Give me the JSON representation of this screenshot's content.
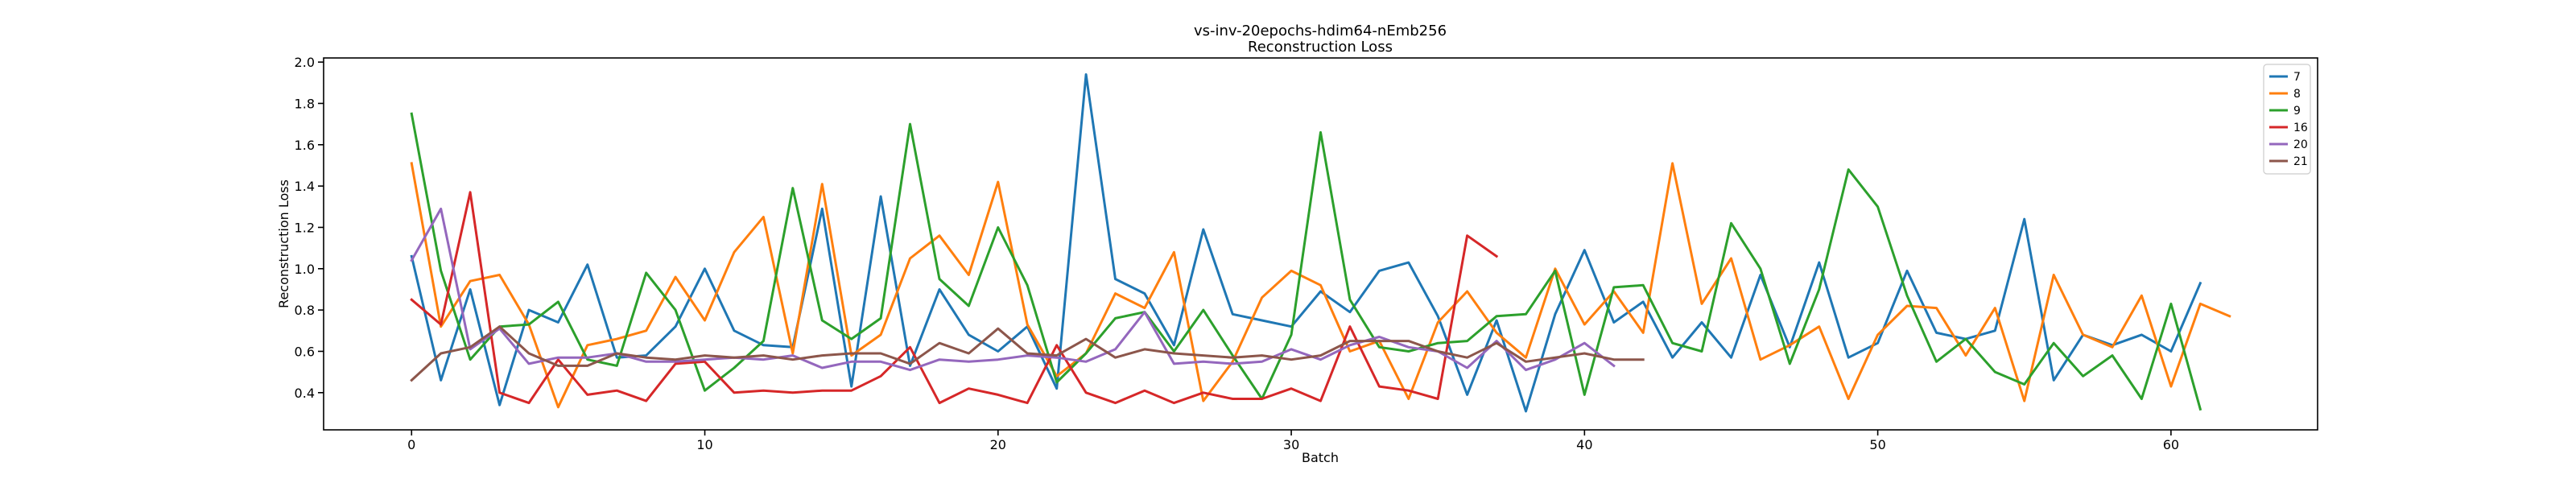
{
  "chart_data": {
    "type": "line",
    "title": "vs-inv-20epochs-hdim64-nEmb256",
    "subtitle": "Reconstruction Loss",
    "xlabel": "Batch",
    "ylabel": "Reconstruction Loss",
    "xlim": [
      -3,
      65
    ],
    "ylim": [
      0.22,
      2.02
    ],
    "xticks": [
      0,
      10,
      20,
      30,
      40,
      50,
      60
    ],
    "yticks": [
      0.4,
      0.6,
      0.8,
      1.0,
      1.2,
      1.4,
      1.6,
      1.8,
      2.0
    ],
    "ytick_labels": [
      "0.4",
      "0.6",
      "0.8",
      "1.0",
      "1.2",
      "1.4",
      "1.6",
      "1.8",
      "2.0"
    ],
    "grid": false,
    "legend_position": "top-right",
    "series": [
      {
        "name": "7",
        "color": "#1f77b4",
        "values": [
          1.06,
          0.46,
          0.9,
          0.34,
          0.8,
          0.74,
          1.02,
          0.57,
          0.58,
          0.72,
          1.0,
          0.7,
          0.63,
          0.62,
          1.29,
          0.43,
          1.35,
          0.53,
          0.9,
          0.68,
          0.6,
          0.72,
          0.42,
          1.94,
          0.95,
          0.88,
          0.63,
          1.19,
          0.78,
          0.75,
          0.72,
          0.89,
          0.79,
          0.99,
          1.03,
          0.77,
          0.39,
          0.75,
          0.31,
          0.78,
          1.09,
          0.74,
          0.84,
          0.57,
          0.74,
          0.57,
          0.97,
          0.62,
          1.03,
          0.57,
          0.64,
          0.99,
          0.69,
          0.66,
          0.7,
          1.24,
          0.46,
          0.68,
          0.63,
          0.68,
          0.6,
          0.93
        ]
      },
      {
        "name": "8",
        "color": "#ff7f0e",
        "values": [
          1.51,
          0.72,
          0.94,
          0.97,
          0.73,
          0.33,
          0.63,
          0.66,
          0.7,
          0.96,
          0.75,
          1.08,
          1.25,
          0.59,
          1.41,
          0.58,
          0.68,
          1.05,
          1.16,
          0.97,
          1.42,
          0.73,
          0.48,
          0.59,
          0.88,
          0.81,
          1.08,
          0.36,
          0.55,
          0.86,
          0.99,
          0.92,
          0.6,
          0.65,
          0.37,
          0.74,
          0.89,
          0.69,
          0.57,
          1.0,
          0.73,
          0.89,
          0.69,
          1.51,
          0.83,
          1.05,
          0.56,
          0.63,
          0.72,
          0.37,
          0.68,
          0.82,
          0.81,
          0.58,
          0.81,
          0.36,
          0.97,
          0.68,
          0.62,
          0.87,
          0.43,
          0.83,
          0.77
        ]
      },
      {
        "name": "9",
        "color": "#2ca02c",
        "values": [
          1.75,
          0.99,
          0.56,
          0.72,
          0.73,
          0.84,
          0.56,
          0.53,
          0.98,
          0.8,
          0.41,
          0.52,
          0.65,
          1.39,
          0.75,
          0.66,
          0.76,
          1.7,
          0.95,
          0.82,
          1.2,
          0.92,
          0.45,
          0.59,
          0.76,
          0.79,
          0.6,
          0.8,
          0.58,
          0.37,
          0.68,
          1.66,
          0.85,
          0.62,
          0.6,
          0.64,
          0.65,
          0.77,
          0.78,
          0.99,
          0.39,
          0.91,
          0.92,
          0.64,
          0.6,
          1.22,
          1.0,
          0.54,
          0.9,
          1.48,
          1.3,
          0.87,
          0.55,
          0.66,
          0.5,
          0.44,
          0.64,
          0.48,
          0.58,
          0.37,
          0.83,
          0.32
        ]
      },
      {
        "name": "16",
        "color": "#d62728",
        "values": [
          0.85,
          0.73,
          1.37,
          0.4,
          0.35,
          0.56,
          0.39,
          0.41,
          0.36,
          0.54,
          0.55,
          0.4,
          0.41,
          0.4,
          0.41,
          0.41,
          0.48,
          0.62,
          0.35,
          0.42,
          0.39,
          0.35,
          0.63,
          0.4,
          0.35,
          0.41,
          0.35,
          0.4,
          0.37,
          0.37,
          0.42,
          0.36,
          0.72,
          0.43,
          0.41,
          0.37,
          1.16,
          1.06
        ]
      },
      {
        "name": "20",
        "color": "#9467bd",
        "values": [
          1.04,
          1.29,
          0.61,
          0.71,
          0.54,
          0.57,
          0.57,
          0.59,
          0.55,
          0.55,
          0.56,
          0.57,
          0.56,
          0.58,
          0.52,
          0.55,
          0.55,
          0.51,
          0.56,
          0.55,
          0.56,
          0.58,
          0.57,
          0.55,
          0.61,
          0.79,
          0.54,
          0.55,
          0.54,
          0.55,
          0.61,
          0.56,
          0.63,
          0.67,
          0.62,
          0.6,
          0.52,
          0.65,
          0.51,
          0.56,
          0.64,
          0.53
        ]
      },
      {
        "name": "21",
        "color": "#8c564b",
        "values": [
          0.46,
          0.59,
          0.62,
          0.72,
          0.59,
          0.53,
          0.53,
          0.59,
          0.57,
          0.56,
          0.58,
          0.57,
          0.58,
          0.56,
          0.58,
          0.59,
          0.59,
          0.54,
          0.64,
          0.59,
          0.71,
          0.59,
          0.58,
          0.66,
          0.57,
          0.61,
          0.59,
          0.58,
          0.57,
          0.58,
          0.56,
          0.58,
          0.65,
          0.65,
          0.65,
          0.6,
          0.57,
          0.64,
          0.55,
          0.57,
          0.59,
          0.56,
          0.56
        ]
      }
    ]
  }
}
